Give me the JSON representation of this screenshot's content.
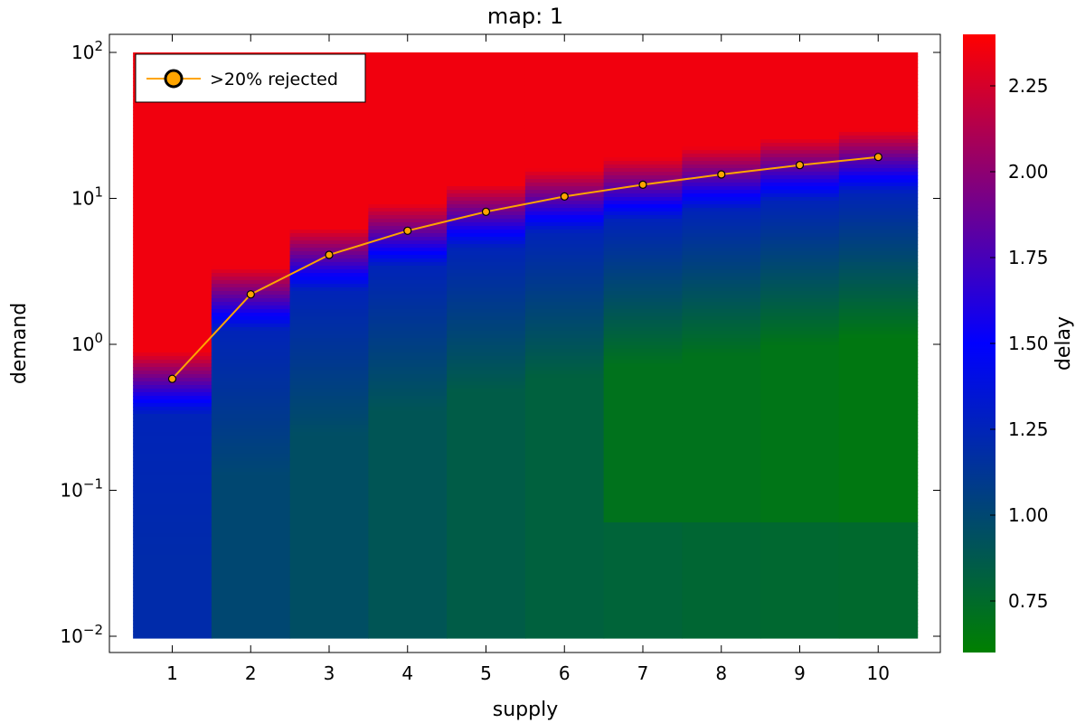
{
  "chart_data": {
    "type": "heatmap",
    "title": "map: 1",
    "xlabel": "supply",
    "ylabel": "demand",
    "colorbar_label": "delay",
    "x": [
      1,
      2,
      3,
      4,
      5,
      6,
      7,
      8,
      9,
      10
    ],
    "x_tick_labels": [
      "1",
      "2",
      "3",
      "4",
      "5",
      "6",
      "7",
      "8",
      "9",
      "10"
    ],
    "y_scale": "log10",
    "y_range": [
      0.01,
      100
    ],
    "y_tick_exponents": [
      -2,
      -1,
      0,
      1,
      2
    ],
    "y_tick_base": "10",
    "colorbar": {
      "range": [
        0.6,
        2.4
      ],
      "ticks": [
        0.75,
        1.0,
        1.25,
        1.5,
        1.75,
        2.0,
        2.25
      ],
      "tick_labels": [
        "0.75",
        "1.00",
        "1.25",
        "1.50",
        "1.75",
        "2.00",
        "2.25"
      ],
      "colormap": [
        "#008000",
        "#0000ff",
        "#ff0000"
      ]
    },
    "heatmap": {
      "description_values": "approximate delay per supply column at bottom (0.01) and near threshold",
      "bottom_delay": [
        1.2,
        1.0,
        0.95,
        0.9,
        0.85,
        0.82,
        0.8,
        0.78,
        0.77,
        0.76
      ],
      "low_band_delay": [
        1.2,
        1.0,
        0.95,
        0.9,
        0.85,
        0.82,
        0.7,
        0.7,
        0.68,
        0.66
      ]
    },
    "series": [
      {
        "name": ">20% rejected",
        "color": "#ffa500",
        "x": [
          1,
          2,
          3,
          4,
          5,
          6,
          7,
          8,
          9,
          10
        ],
        "y": [
          0.58,
          2.2,
          4.1,
          6.0,
          8.1,
          10.3,
          12.4,
          14.6,
          16.9,
          19.2
        ]
      }
    ],
    "legend_placement": "top-left",
    "grid": false
  }
}
